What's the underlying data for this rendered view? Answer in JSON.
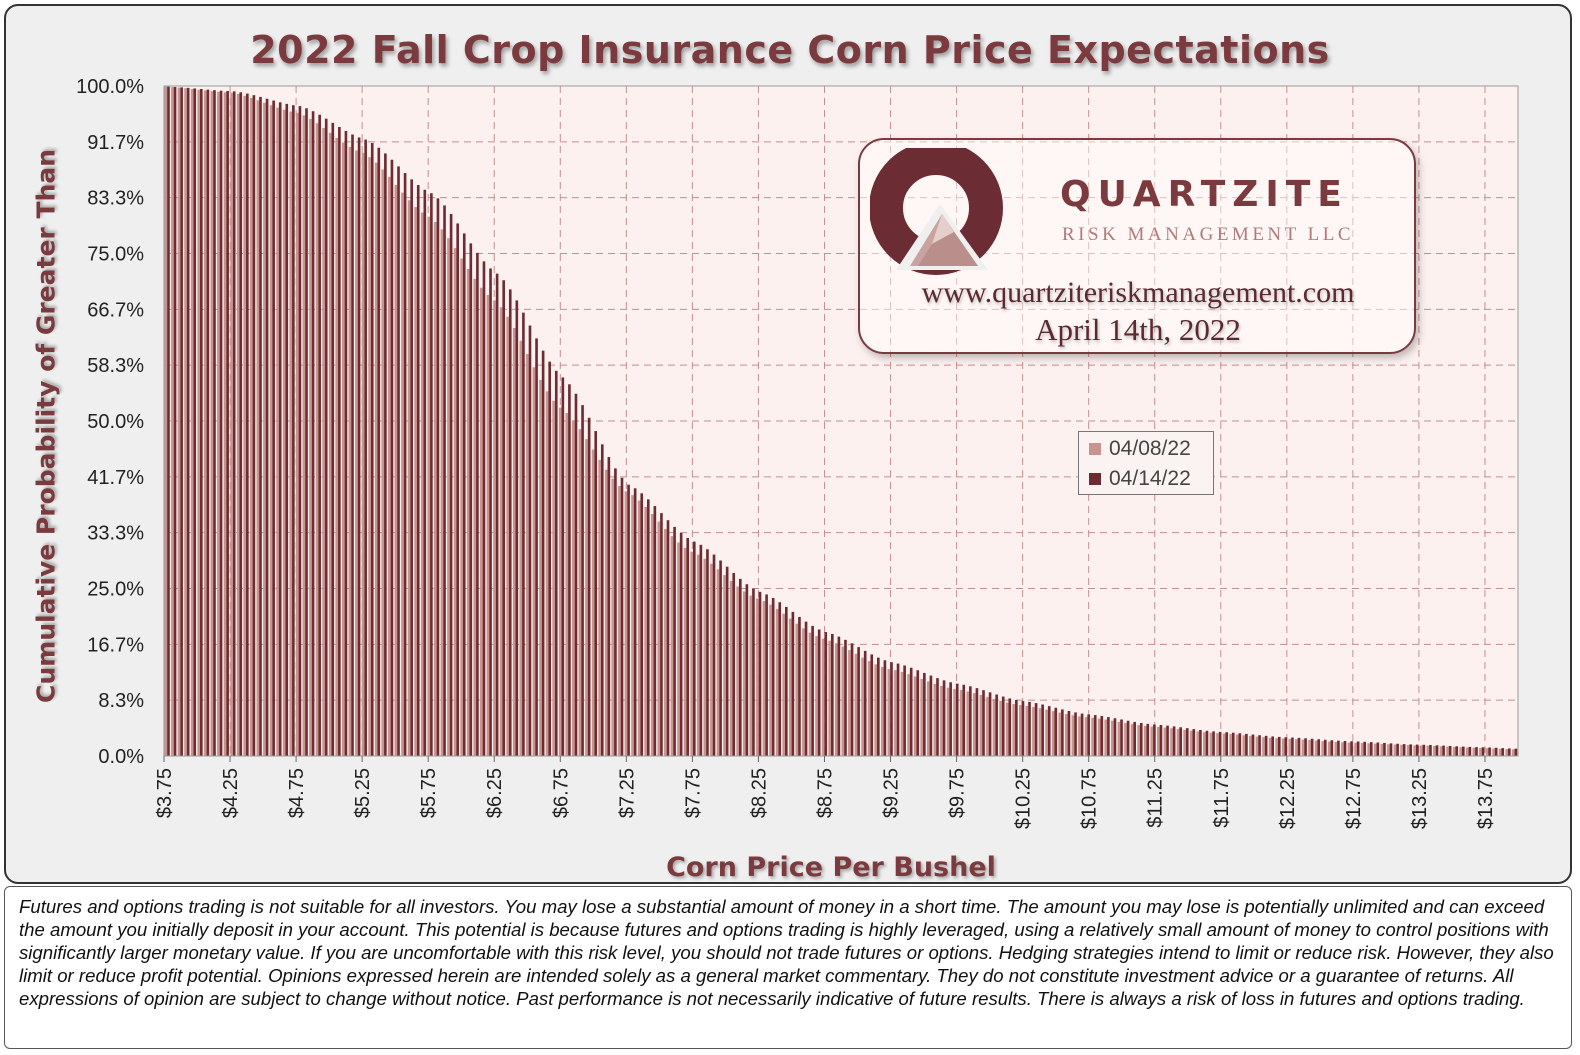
{
  "title": "2022 Fall Crop Insurance Corn Price Expectations",
  "chart_data": {
    "type": "bar",
    "title": "2022 Fall Crop Insurance Corn Price Expectations",
    "xlabel": "Corn Price Per Bushel",
    "ylabel": "Cumulative Probability of Greater Than",
    "x_range": [
      3.75,
      14.0
    ],
    "x_step": 0.05,
    "x_tick_labels": [
      "$3.75",
      "$4.25",
      "$4.75",
      "$5.25",
      "$5.75",
      "$6.25",
      "$6.75",
      "$7.25",
      "$7.75",
      "$8.25",
      "$8.75",
      "$9.25",
      "$9.75",
      "$10.25",
      "$10.75",
      "$11.25",
      "$11.75",
      "$12.25",
      "$12.75",
      "$13.25",
      "$13.75"
    ],
    "x_tick_values": [
      3.75,
      4.25,
      4.75,
      5.25,
      5.75,
      6.25,
      6.75,
      7.25,
      7.75,
      8.25,
      8.75,
      9.25,
      9.75,
      10.25,
      10.75,
      11.25,
      11.75,
      12.25,
      12.75,
      13.25,
      13.75
    ],
    "y_tick_labels": [
      "100.0%",
      "91.7%",
      "83.3%",
      "75.0%",
      "66.7%",
      "58.3%",
      "50.0%",
      "41.7%",
      "33.3%",
      "25.0%",
      "16.7%",
      "8.3%",
      "0.0%"
    ],
    "ylim": [
      0,
      100
    ],
    "grid": true,
    "legend_position": "center-right",
    "series": [
      {
        "name": "04/08/22",
        "color": "#c9938e",
        "points": [
          [
            3.75,
            99.9
          ],
          [
            4.25,
            99.0
          ],
          [
            4.75,
            96.0
          ],
          [
            5.25,
            90.0
          ],
          [
            5.75,
            80.5
          ],
          [
            6.25,
            68.0
          ],
          [
            6.75,
            52.0
          ],
          [
            7.25,
            39.5
          ],
          [
            7.75,
            30.5
          ],
          [
            8.25,
            23.5
          ],
          [
            8.75,
            17.5
          ],
          [
            9.25,
            13.0
          ],
          [
            9.75,
            10.0
          ],
          [
            10.25,
            7.6
          ],
          [
            10.75,
            5.8
          ],
          [
            11.25,
            4.4
          ],
          [
            11.75,
            3.4
          ],
          [
            12.25,
            2.6
          ],
          [
            12.75,
            2.0
          ],
          [
            13.25,
            1.6
          ],
          [
            13.75,
            1.2
          ],
          [
            14.0,
            1.0
          ]
        ]
      },
      {
        "name": "04/14/22",
        "color": "#6b2d33",
        "points": [
          [
            3.75,
            99.9
          ],
          [
            4.25,
            99.2
          ],
          [
            4.75,
            97.0
          ],
          [
            5.25,
            92.0
          ],
          [
            5.75,
            84.0
          ],
          [
            6.25,
            72.0
          ],
          [
            6.75,
            56.5
          ],
          [
            7.25,
            40.5
          ],
          [
            7.75,
            32.0
          ],
          [
            8.25,
            24.5
          ],
          [
            8.75,
            18.5
          ],
          [
            9.25,
            14.0
          ],
          [
            9.75,
            10.8
          ],
          [
            10.25,
            8.2
          ],
          [
            10.75,
            6.2
          ],
          [
            11.25,
            4.7
          ],
          [
            11.75,
            3.6
          ],
          [
            12.25,
            2.8
          ],
          [
            12.75,
            2.2
          ],
          [
            13.25,
            1.7
          ],
          [
            13.75,
            1.3
          ],
          [
            14.0,
            1.1
          ]
        ]
      }
    ]
  },
  "colors": {
    "accent": "#7b3a3e",
    "plot_background": "#fdf1ef",
    "grid": "#c48f8f"
  },
  "logo": {
    "name": "QUARTZITE",
    "subtitle": "RISK MANAGEMENT LLC",
    "website": "www.quartziteriskmanagement.com",
    "date": "April 14th, 2022"
  },
  "legend": {
    "items": [
      {
        "label": "04/08/22",
        "color": "#c9938e"
      },
      {
        "label": "04/14/22",
        "color": "#6b2d33"
      }
    ]
  },
  "disclaimer": "Futures and options trading is not suitable for all investors. You may lose a substantial amount of money in a short time. The amount you may lose is potentially unlimited and can exceed the amount you initially deposit in your account. This potential is because futures and options trading is highly leveraged, using a relatively small amount of money to control positions with significantly larger monetary value. If you are uncomfortable with this risk level, you should not trade futures or options. Hedging strategies intend to limit or reduce risk. However, they also limit or reduce profit potential. Opinions expressed herein are intended solely as a general market commentary. They do not constitute investment advice or a guarantee of returns. All expressions of opinion are subject to change without notice. Past performance is not necessarily indicative of future results. There is always a risk of loss in futures and options trading."
}
